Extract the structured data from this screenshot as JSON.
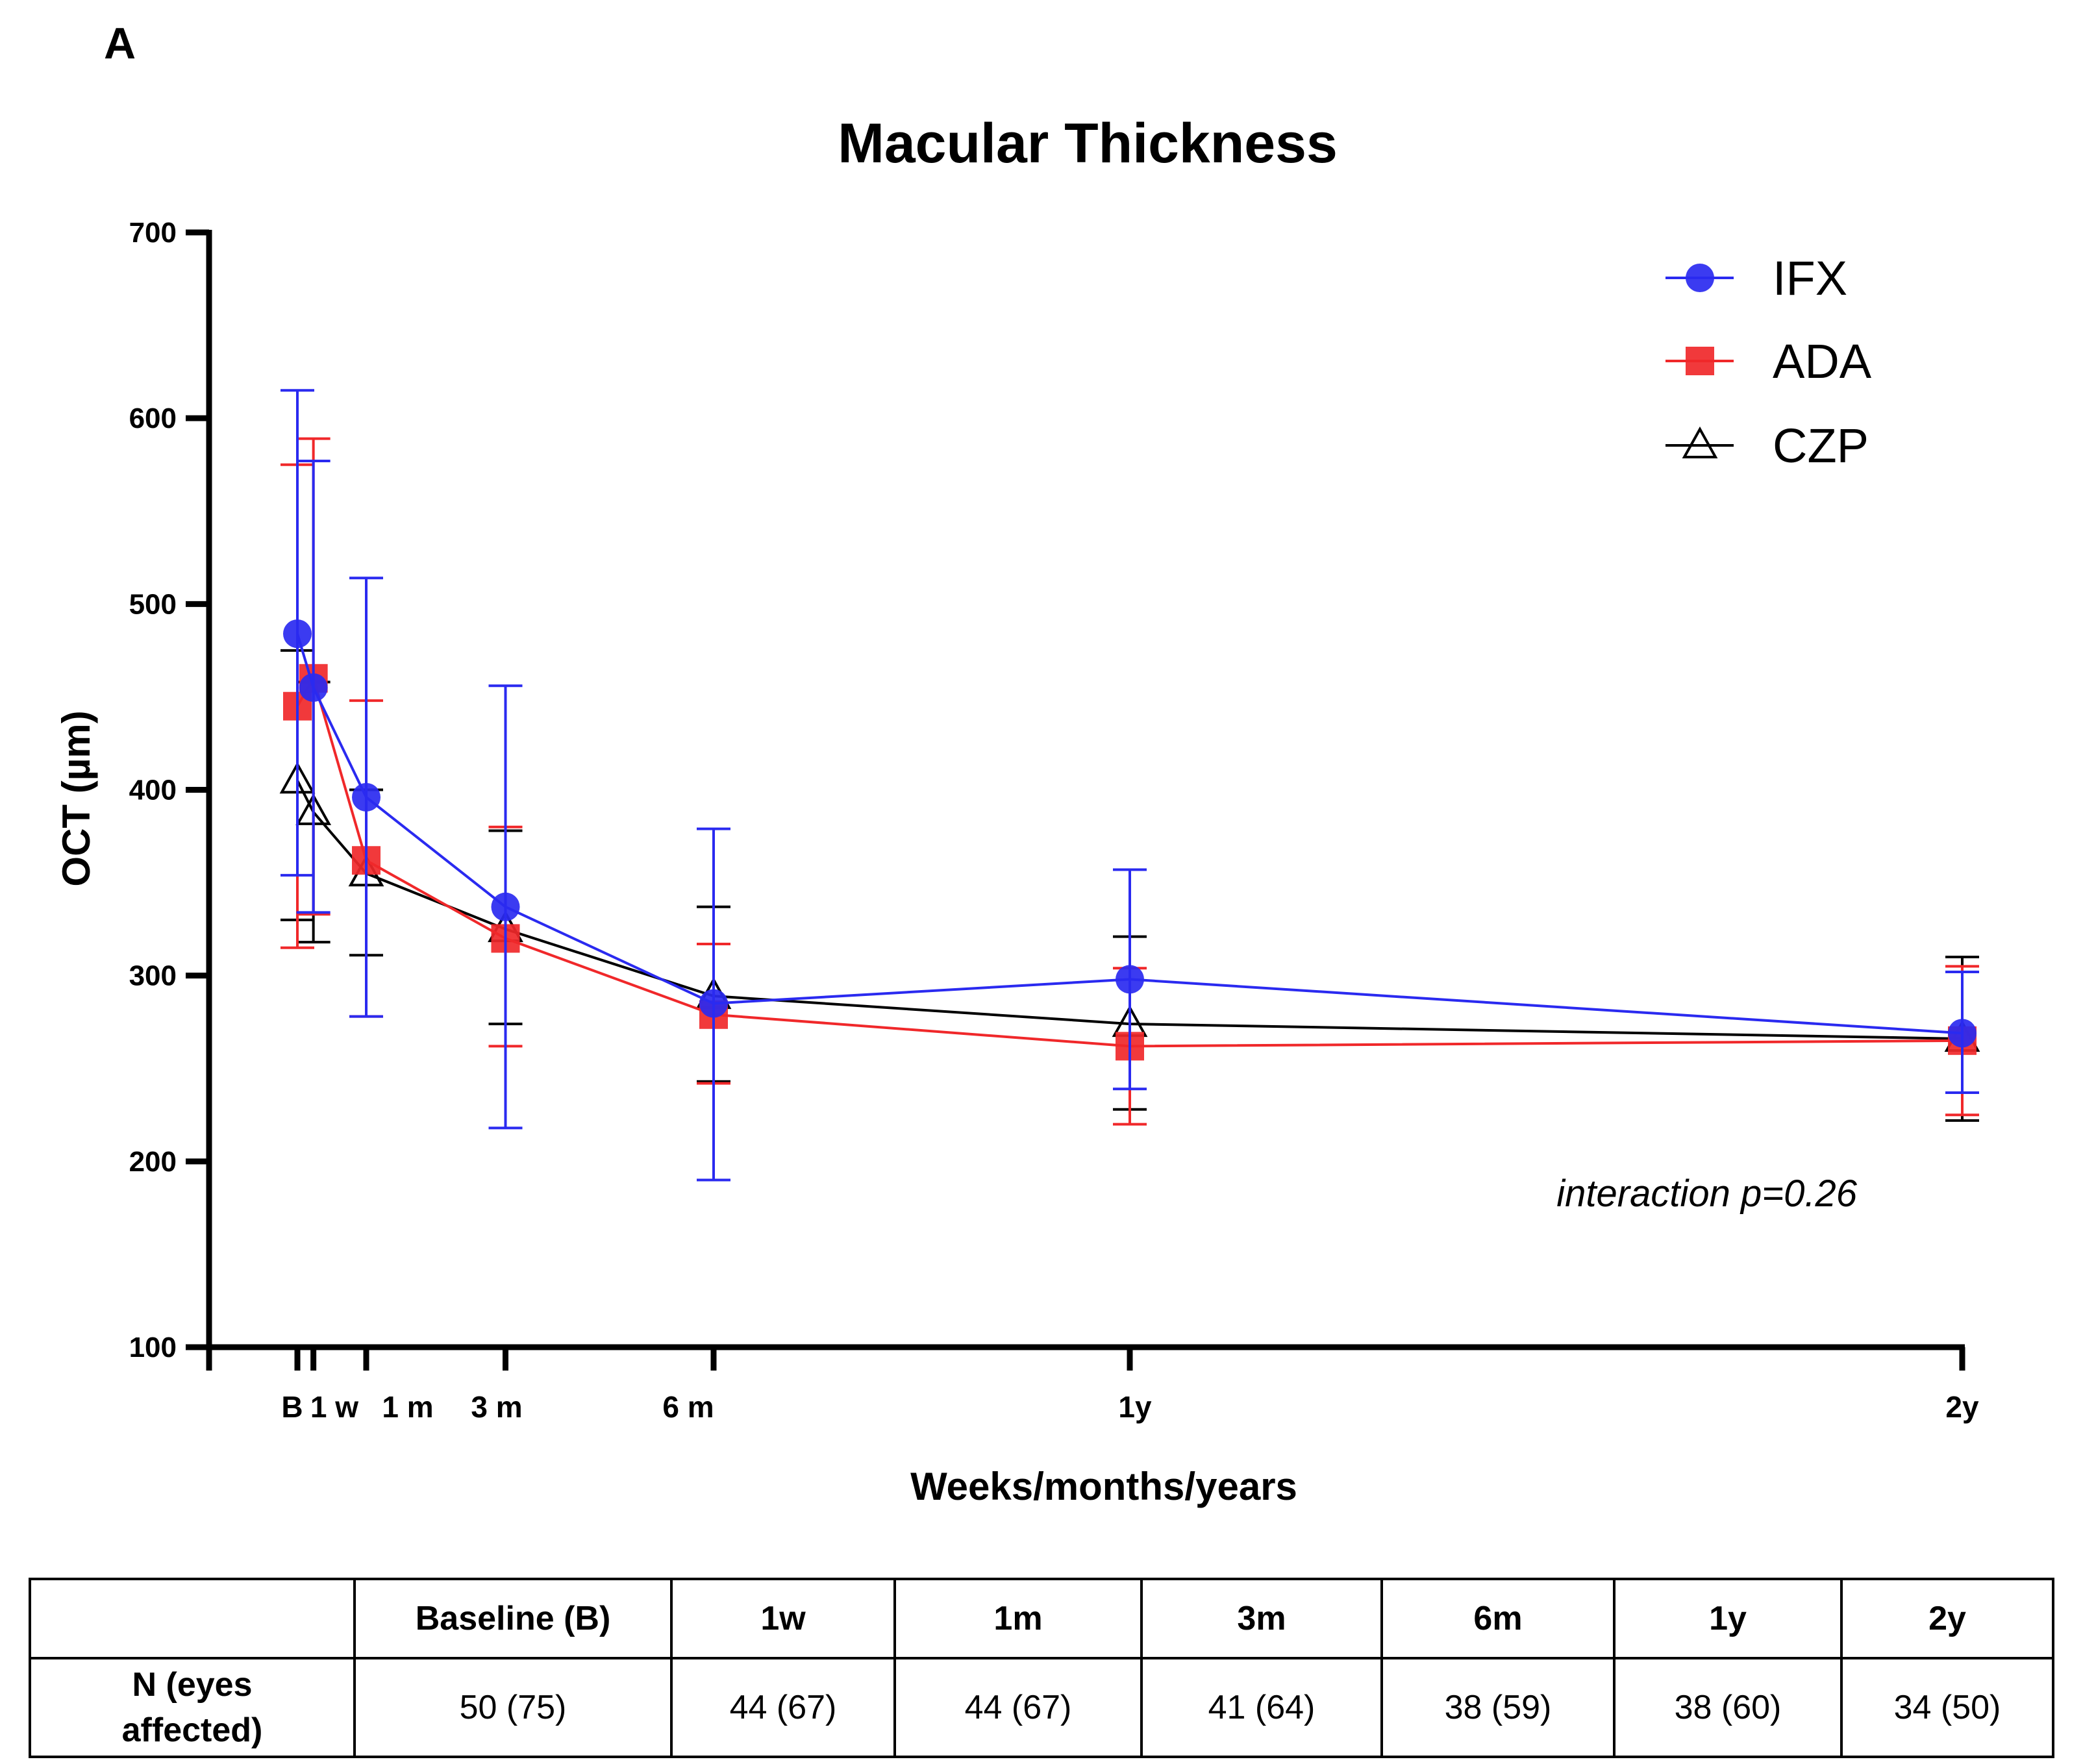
{
  "panel_label": "A",
  "chart_data": {
    "type": "line",
    "title": "Macular Thickness",
    "xlabel": "Weeks/months/years",
    "ylabel": "OCT (µm)",
    "ylim": [
      100,
      700
    ],
    "yticks": [
      100,
      200,
      300,
      400,
      500,
      600,
      700
    ],
    "x_ticks": [
      {
        "label": "B",
        "weeks": 0
      },
      {
        "label": "1 w",
        "weeks": 1
      },
      {
        "label": "1 m",
        "weeks": 4.3
      },
      {
        "label": "3 m",
        "weeks": 13
      },
      {
        "label": "6 m",
        "weeks": 26
      },
      {
        "label": "1y",
        "weeks": 52
      },
      {
        "label": "2y",
        "weeks": 104
      }
    ],
    "grid": false,
    "legend_position": "top-right",
    "series": [
      {
        "name": "IFX",
        "color": "#2a2af0",
        "marker": "circle",
        "points": [
          {
            "x": 0,
            "y": 484,
            "lo": 354,
            "hi": 615
          },
          {
            "x": 1,
            "y": 455,
            "lo": 334,
            "hi": 577
          },
          {
            "x": 4.3,
            "y": 396,
            "lo": 278,
            "hi": 514
          },
          {
            "x": 13,
            "y": 337,
            "lo": 218,
            "hi": 456
          },
          {
            "x": 26,
            "y": 285,
            "lo": 190,
            "hi": 379
          },
          {
            "x": 52,
            "y": 298,
            "lo": 239,
            "hi": 357
          },
          {
            "x": 104,
            "y": 269,
            "lo": 237,
            "hi": 302
          }
        ]
      },
      {
        "name": "ADA",
        "color": "#f0282a",
        "marker": "square",
        "points": [
          {
            "x": 0,
            "y": 445,
            "lo": 315,
            "hi": 575
          },
          {
            "x": 1,
            "y": 460,
            "lo": 333,
            "hi": 589
          },
          {
            "x": 4.3,
            "y": 362,
            "lo": 278,
            "hi": 448
          },
          {
            "x": 13,
            "y": 320,
            "lo": 262,
            "hi": 380
          },
          {
            "x": 26,
            "y": 279,
            "lo": 242,
            "hi": 317
          },
          {
            "x": 52,
            "y": 262,
            "lo": 220,
            "hi": 304
          },
          {
            "x": 104,
            "y": 265,
            "lo": 225,
            "hi": 305
          }
        ]
      },
      {
        "name": "CZP",
        "color": "#000000",
        "marker": "triangle-open",
        "points": [
          {
            "x": 0,
            "y": 405,
            "lo": 330,
            "hi": 475
          },
          {
            "x": 1,
            "y": 388,
            "lo": 318,
            "hi": 458
          },
          {
            "x": 4.3,
            "y": 355,
            "lo": 311,
            "hi": 400
          },
          {
            "x": 13,
            "y": 325,
            "lo": 274,
            "hi": 378
          },
          {
            "x": 26,
            "y": 289,
            "lo": 243,
            "hi": 337
          },
          {
            "x": 52,
            "y": 274,
            "lo": 228,
            "hi": 321
          },
          {
            "x": 104,
            "y": 266,
            "lo": 222,
            "hi": 310
          }
        ]
      }
    ],
    "annotation": "interaction p=0.26"
  },
  "table": {
    "header": [
      "",
      "Baseline (B)",
      "1w",
      "1m",
      "3m",
      "6m",
      "1y",
      "2y"
    ],
    "row_label_line1": "N (eyes",
    "row_label_line2": "affected)",
    "values": [
      "50 (75)",
      "44 (67)",
      "44 (67)",
      "41 (64)",
      "38 (59)",
      "38 (60)",
      "34 (50)"
    ]
  }
}
